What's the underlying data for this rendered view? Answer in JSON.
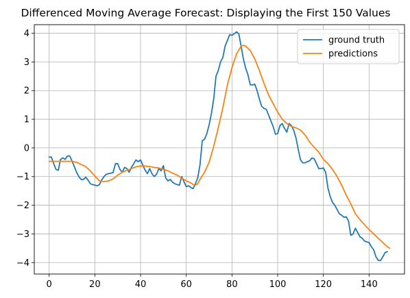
{
  "chart_data": {
    "type": "line",
    "title": "Differenced Moving Average Forecast: Displaying the First 150 Values",
    "xlabel": "",
    "ylabel": "",
    "xlim": [
      -6.5,
      155.5
    ],
    "ylim": [
      -4.4,
      4.3
    ],
    "xticks": [
      0,
      20,
      40,
      60,
      80,
      100,
      120,
      140
    ],
    "yticks": [
      -4,
      -3,
      -2,
      -1,
      0,
      1,
      2,
      3,
      4
    ],
    "grid": true,
    "legend_position": "top-right",
    "series": [
      {
        "name": "ground truth",
        "color": "#1f77b4",
        "points": [
          [
            0,
            -0.32
          ],
          [
            1,
            -0.32
          ],
          [
            2,
            -0.55
          ],
          [
            3,
            -0.75
          ],
          [
            4,
            -0.78
          ],
          [
            5,
            -0.4
          ],
          [
            6,
            -0.35
          ],
          [
            7,
            -0.4
          ],
          [
            8,
            -0.28
          ],
          [
            9,
            -0.28
          ],
          [
            10,
            -0.45
          ],
          [
            11,
            -0.65
          ],
          [
            12,
            -0.85
          ],
          [
            13,
            -1.0
          ],
          [
            14,
            -1.1
          ],
          [
            15,
            -1.1
          ],
          [
            16,
            -1.02
          ],
          [
            17,
            -1.12
          ],
          [
            18,
            -1.25
          ],
          [
            19,
            -1.28
          ],
          [
            20,
            -1.3
          ],
          [
            21,
            -1.32
          ],
          [
            22,
            -1.28
          ],
          [
            23,
            -1.12
          ],
          [
            24,
            -1.0
          ],
          [
            25,
            -0.92
          ],
          [
            26,
            -0.9
          ],
          [
            27,
            -0.88
          ],
          [
            28,
            -0.86
          ],
          [
            29,
            -0.55
          ],
          [
            30,
            -0.55
          ],
          [
            31,
            -0.75
          ],
          [
            32,
            -0.85
          ],
          [
            33,
            -0.68
          ],
          [
            34,
            -0.72
          ],
          [
            35,
            -0.85
          ],
          [
            36,
            -0.68
          ],
          [
            37,
            -0.55
          ],
          [
            38,
            -0.42
          ],
          [
            39,
            -0.48
          ],
          [
            40,
            -0.42
          ],
          [
            41,
            -0.6
          ],
          [
            42,
            -0.78
          ],
          [
            43,
            -0.9
          ],
          [
            44,
            -0.72
          ],
          [
            45,
            -0.9
          ],
          [
            46,
            -1.0
          ],
          [
            47,
            -0.92
          ],
          [
            48,
            -0.72
          ],
          [
            49,
            -0.8
          ],
          [
            50,
            -0.62
          ],
          [
            51,
            -1.05
          ],
          [
            52,
            -1.15
          ],
          [
            53,
            -1.1
          ],
          [
            54,
            -1.2
          ],
          [
            55,
            -1.25
          ],
          [
            56,
            -1.28
          ],
          [
            57,
            -1.3
          ],
          [
            58,
            -1.0
          ],
          [
            59,
            -1.18
          ],
          [
            60,
            -1.35
          ],
          [
            61,
            -1.32
          ],
          [
            62,
            -1.38
          ],
          [
            63,
            -1.42
          ],
          [
            64,
            -1.25
          ],
          [
            65,
            -1.05
          ],
          [
            66,
            -0.6
          ],
          [
            67,
            0.25
          ],
          [
            68,
            0.3
          ],
          [
            69,
            0.5
          ],
          [
            70,
            0.8
          ],
          [
            71,
            1.2
          ],
          [
            72,
            1.7
          ],
          [
            73,
            2.5
          ],
          [
            74,
            2.7
          ],
          [
            75,
            3.0
          ],
          [
            76,
            3.15
          ],
          [
            77,
            3.55
          ],
          [
            78,
            3.75
          ],
          [
            79,
            3.95
          ],
          [
            80,
            3.93
          ],
          [
            81,
            3.98
          ],
          [
            82,
            4.05
          ],
          [
            83,
            3.98
          ],
          [
            84,
            3.55
          ],
          [
            85,
            3.1
          ],
          [
            86,
            2.78
          ],
          [
            87,
            2.55
          ],
          [
            88,
            2.2
          ],
          [
            89,
            2.2
          ],
          [
            90,
            2.22
          ],
          [
            91,
            2.0
          ],
          [
            92,
            1.7
          ],
          [
            93,
            1.45
          ],
          [
            94,
            1.38
          ],
          [
            95,
            1.35
          ],
          [
            96,
            1.15
          ],
          [
            97,
            0.95
          ],
          [
            98,
            0.75
          ],
          [
            99,
            0.48
          ],
          [
            100,
            0.5
          ],
          [
            101,
            0.78
          ],
          [
            102,
            0.85
          ],
          [
            103,
            0.68
          ],
          [
            104,
            0.55
          ],
          [
            105,
            0.85
          ],
          [
            106,
            0.78
          ],
          [
            107,
            0.62
          ],
          [
            108,
            0.35
          ],
          [
            109,
            -0.05
          ],
          [
            110,
            -0.42
          ],
          [
            111,
            -0.52
          ],
          [
            112,
            -0.52
          ],
          [
            113,
            -0.48
          ],
          [
            114,
            -0.45
          ],
          [
            115,
            -0.35
          ],
          [
            116,
            -0.38
          ],
          [
            117,
            -0.55
          ],
          [
            118,
            -0.72
          ],
          [
            119,
            -0.72
          ],
          [
            120,
            -0.7
          ],
          [
            121,
            -0.85
          ],
          [
            122,
            -1.4
          ],
          [
            123,
            -1.7
          ],
          [
            124,
            -1.9
          ],
          [
            125,
            -2.0
          ],
          [
            126,
            -2.15
          ],
          [
            127,
            -2.3
          ],
          [
            128,
            -2.35
          ],
          [
            129,
            -2.42
          ],
          [
            130,
            -2.4
          ],
          [
            131,
            -2.55
          ],
          [
            132,
            -3.05
          ],
          [
            133,
            -3.0
          ],
          [
            134,
            -2.8
          ],
          [
            135,
            -2.95
          ],
          [
            136,
            -3.1
          ],
          [
            137,
            -3.15
          ],
          [
            138,
            -3.25
          ],
          [
            139,
            -3.28
          ],
          [
            140,
            -3.3
          ],
          [
            141,
            -3.45
          ],
          [
            142,
            -3.55
          ],
          [
            143,
            -3.8
          ],
          [
            144,
            -3.92
          ],
          [
            145,
            -3.93
          ],
          [
            146,
            -3.8
          ],
          [
            147,
            -3.65
          ],
          [
            148,
            -3.62
          ]
        ]
      },
      {
        "name": "predictions",
        "color": "#ff7f0e",
        "points": [
          [
            0,
            -0.47
          ],
          [
            2,
            -0.47
          ],
          [
            4,
            -0.47
          ],
          [
            6,
            -0.47
          ],
          [
            8,
            -0.47
          ],
          [
            10,
            -0.47
          ],
          [
            12,
            -0.5
          ],
          [
            14,
            -0.58
          ],
          [
            16,
            -0.65
          ],
          [
            18,
            -0.8
          ],
          [
            20,
            -0.98
          ],
          [
            22,
            -1.15
          ],
          [
            24,
            -1.18
          ],
          [
            26,
            -1.15
          ],
          [
            28,
            -1.08
          ],
          [
            30,
            -0.95
          ],
          [
            32,
            -0.85
          ],
          [
            34,
            -0.78
          ],
          [
            36,
            -0.72
          ],
          [
            38,
            -0.66
          ],
          [
            40,
            -0.63
          ],
          [
            42,
            -0.63
          ],
          [
            44,
            -0.65
          ],
          [
            46,
            -0.68
          ],
          [
            48,
            -0.7
          ],
          [
            50,
            -0.75
          ],
          [
            52,
            -0.8
          ],
          [
            54,
            -0.88
          ],
          [
            56,
            -0.95
          ],
          [
            58,
            -1.05
          ],
          [
            60,
            -1.15
          ],
          [
            62,
            -1.22
          ],
          [
            63,
            -1.28
          ],
          [
            64,
            -1.3
          ],
          [
            65,
            -1.25
          ],
          [
            66,
            -1.1
          ],
          [
            68,
            -0.85
          ],
          [
            70,
            -0.5
          ],
          [
            72,
            0.05
          ],
          [
            74,
            0.7
          ],
          [
            76,
            1.4
          ],
          [
            78,
            2.2
          ],
          [
            80,
            2.8
          ],
          [
            82,
            3.28
          ],
          [
            84,
            3.55
          ],
          [
            85,
            3.58
          ],
          [
            86,
            3.55
          ],
          [
            88,
            3.4
          ],
          [
            90,
            3.1
          ],
          [
            92,
            2.7
          ],
          [
            94,
            2.25
          ],
          [
            96,
            1.85
          ],
          [
            98,
            1.55
          ],
          [
            100,
            1.25
          ],
          [
            102,
            1.0
          ],
          [
            104,
            0.85
          ],
          [
            106,
            0.75
          ],
          [
            108,
            0.7
          ],
          [
            110,
            0.62
          ],
          [
            112,
            0.45
          ],
          [
            114,
            0.2
          ],
          [
            116,
            0.02
          ],
          [
            118,
            -0.15
          ],
          [
            120,
            -0.4
          ],
          [
            122,
            -0.55
          ],
          [
            124,
            -0.75
          ],
          [
            126,
            -1.0
          ],
          [
            128,
            -1.3
          ],
          [
            130,
            -1.65
          ],
          [
            132,
            -1.95
          ],
          [
            134,
            -2.3
          ],
          [
            136,
            -2.5
          ],
          [
            138,
            -2.68
          ],
          [
            140,
            -2.85
          ],
          [
            142,
            -3.0
          ],
          [
            144,
            -3.15
          ],
          [
            146,
            -3.3
          ],
          [
            148,
            -3.45
          ],
          [
            149,
            -3.5
          ]
        ]
      }
    ]
  }
}
